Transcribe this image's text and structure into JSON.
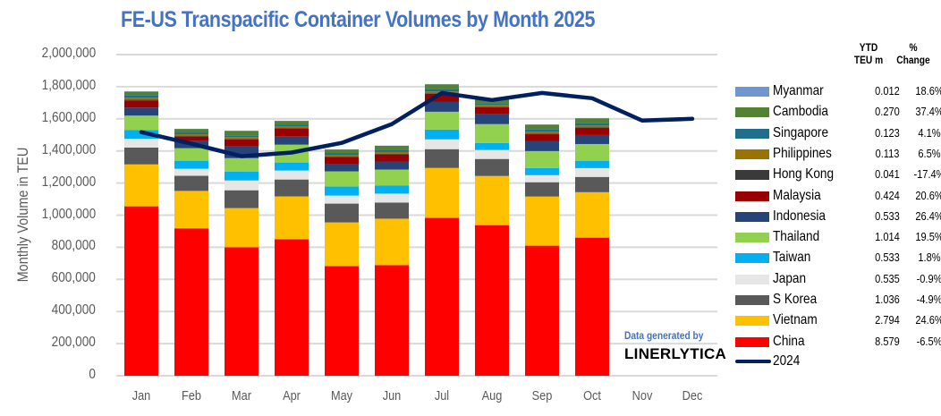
{
  "chart_data": {
    "type": "bar",
    "stacked": true,
    "title": "FE-US Transpacific Container Volumes by Month 2025",
    "xlabel": "",
    "ylabel": "Monthly Volume in TEU",
    "ylim": [
      0,
      2000000
    ],
    "yticks": [
      0,
      200000,
      400000,
      600000,
      800000,
      1000000,
      1200000,
      1400000,
      1600000,
      1800000,
      2000000
    ],
    "ytick_labels": [
      "0",
      "200,000",
      "400,000",
      "600,000",
      "800,000",
      "1,000,000",
      "1,200,000",
      "1,400,000",
      "1,600,000",
      "1,800,000",
      "2,000,000"
    ],
    "grid": true,
    "categories": [
      "Jan",
      "Feb",
      "Mar",
      "Apr",
      "May",
      "Jun",
      "Jul",
      "Aug",
      "Sep",
      "Oct",
      "Nov",
      "Dec"
    ],
    "series": [
      {
        "name": "China",
        "color": "#FF0000",
        "values": [
          1055000,
          918000,
          800000,
          850000,
          683000,
          689000,
          983000,
          938000,
          810000,
          860000,
          null,
          null
        ]
      },
      {
        "name": "Vietnam",
        "color": "#FFC000",
        "values": [
          261000,
          233000,
          244000,
          267000,
          272000,
          289000,
          311000,
          306000,
          306000,
          283000,
          null,
          null
        ]
      },
      {
        "name": "S Korea",
        "color": "#595959",
        "values": [
          105000,
          94000,
          111000,
          105000,
          117000,
          100000,
          117000,
          106000,
          89000,
          95000,
          null,
          null
        ]
      },
      {
        "name": "Japan",
        "color": "#E7E6E6",
        "values": [
          55000,
          44000,
          61000,
          56000,
          50000,
          56000,
          61000,
          56000,
          44000,
          55000,
          null,
          null
        ]
      },
      {
        "name": "Taiwan",
        "color": "#00B0F0",
        "values": [
          55000,
          50000,
          56000,
          50000,
          56000,
          50000,
          61000,
          44000,
          44000,
          44000,
          null,
          null
        ]
      },
      {
        "name": "Thailand",
        "color": "#92D050",
        "values": [
          89000,
          78000,
          83000,
          111000,
          95000,
          100000,
          111000,
          117000,
          106000,
          106000,
          null,
          null
        ]
      },
      {
        "name": "Indonesia",
        "color": "#264478",
        "values": [
          50000,
          44000,
          72000,
          50000,
          44000,
          50000,
          61000,
          61000,
          61000,
          56000,
          null,
          null
        ]
      },
      {
        "name": "Malaysia",
        "color": "#990000",
        "values": [
          44000,
          28000,
          44000,
          50000,
          44000,
          44000,
          50000,
          44000,
          44000,
          44000,
          null,
          null
        ]
      },
      {
        "name": "Hong Kong",
        "color": "#3A3A3A",
        "values": [
          6000,
          4000,
          4000,
          4000,
          4000,
          4000,
          4000,
          4000,
          4000,
          4000,
          null,
          null
        ]
      },
      {
        "name": "Philippines",
        "color": "#997300",
        "values": [
          11000,
          11000,
          11000,
          11000,
          11000,
          11000,
          11000,
          11000,
          11000,
          11000,
          null,
          null
        ]
      },
      {
        "name": "Singapore",
        "color": "#1F6E8C",
        "values": [
          17000,
          11000,
          11000,
          11000,
          11000,
          11000,
          17000,
          11000,
          17000,
          17000,
          null,
          null
        ]
      },
      {
        "name": "Cambodia",
        "color": "#548235",
        "values": [
          22000,
          22000,
          28000,
          22000,
          22000,
          28000,
          28000,
          28000,
          28000,
          28000,
          null,
          null
        ]
      },
      {
        "name": "Myanmar",
        "color": "#6F96D1",
        "values": [
          1000,
          1000,
          1000,
          1000,
          1000,
          1000,
          1000,
          1000,
          1000,
          1000,
          null,
          null
        ]
      }
    ],
    "line_series": {
      "name": "2024",
      "color": "#002060",
      "values": [
        1517000,
        1445000,
        1367000,
        1390000,
        1450000,
        1567000,
        1761000,
        1717000,
        1761000,
        1728000,
        1589000,
        1600000
      ]
    },
    "legend": {
      "placement": "right",
      "header_ytd": [
        "YTD",
        "TEU m"
      ],
      "header_pct": [
        "%",
        "Change"
      ],
      "entries": [
        {
          "name": "Myanmar",
          "color": "#6F96D1",
          "ytd": "0.012",
          "pct": "18.6%"
        },
        {
          "name": "Cambodia",
          "color": "#548235",
          "ytd": "0.270",
          "pct": "37.4%"
        },
        {
          "name": "Singapore",
          "color": "#1F6E8C",
          "ytd": "0.123",
          "pct": "4.1%"
        },
        {
          "name": "Philippines",
          "color": "#997300",
          "ytd": "0.113",
          "pct": "6.5%"
        },
        {
          "name": "Hong Kong",
          "color": "#3A3A3A",
          "ytd": "0.041",
          "pct": "-17.4%"
        },
        {
          "name": "Malaysia",
          "color": "#990000",
          "ytd": "0.424",
          "pct": "20.6%"
        },
        {
          "name": "Indonesia",
          "color": "#264478",
          "ytd": "0.533",
          "pct": "26.4%"
        },
        {
          "name": "Thailand",
          "color": "#92D050",
          "ytd": "1.014",
          "pct": "19.5%"
        },
        {
          "name": "Taiwan",
          "color": "#00B0F0",
          "ytd": "0.533",
          "pct": "1.8%"
        },
        {
          "name": "Japan",
          "color": "#E7E6E6",
          "ytd": "0.535",
          "pct": "-0.9%"
        },
        {
          "name": "S Korea",
          "color": "#595959",
          "ytd": "1.036",
          "pct": "-4.9%"
        },
        {
          "name": "Vietnam",
          "color": "#FFC000",
          "ytd": "2.794",
          "pct": "24.6%"
        },
        {
          "name": "China",
          "color": "#FF0000",
          "ytd": "8.579",
          "pct": "-6.5%"
        }
      ],
      "line_entry": {
        "name": "2024"
      }
    },
    "annotations": [
      "Data generated by",
      "LINERLYTICA"
    ]
  }
}
